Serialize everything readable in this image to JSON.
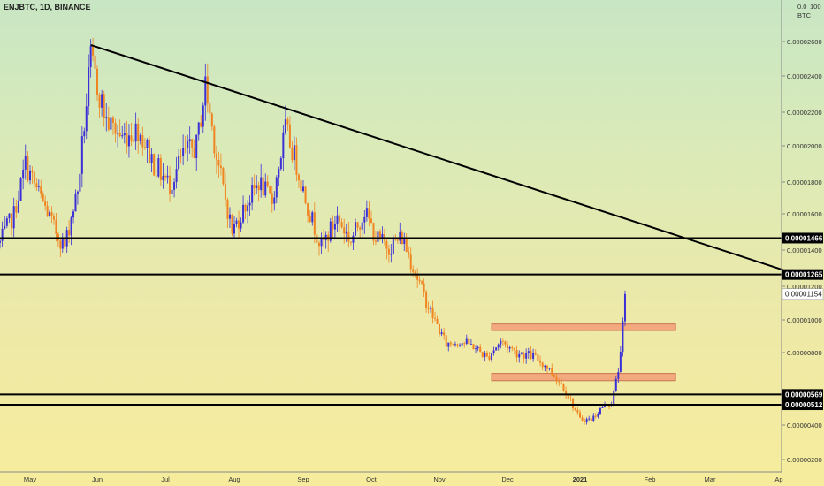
{
  "header": {
    "symbol_title": "ENJBTC, 1D, BINANCE"
  },
  "axis_top": {
    "zero_label": "0.0",
    "unit_label": "BTC",
    "scale_label": "100"
  },
  "colors": {
    "bull": "#3b2fd6",
    "bear": "#f08420",
    "line": "#000000",
    "box_fill": "#f4a27a",
    "box_stroke": "#c86a4a",
    "tag_bg": "#000000",
    "current_tag_bg": "#ffffff"
  },
  "chart_data": {
    "type": "candlestick",
    "title": "ENJBTC, 1D, BINANCE",
    "y_unit": "BTC",
    "ylim": [
      1.4e-06,
      2.78e-06
    ],
    "xlim": [
      "2020-04-18",
      "2021-04-03"
    ],
    "y_ticks": [
      "0.00000200",
      "0.00000400",
      "0.00000800",
      "0.00001000",
      "0.00001200",
      "0.00001400",
      "0.00001600",
      "0.00001800",
      "0.00002000",
      "0.00002200",
      "0.00002400",
      "0.00002600"
    ],
    "x_ticks": [
      {
        "label": "May",
        "date": "2020-05-01"
      },
      {
        "label": "Jun",
        "date": "2020-06-01"
      },
      {
        "label": "Jul",
        "date": "2020-07-01"
      },
      {
        "label": "Aug",
        "date": "2020-08-01"
      },
      {
        "label": "Sep",
        "date": "2020-09-01"
      },
      {
        "label": "Oct",
        "date": "2020-10-01"
      },
      {
        "label": "Nov",
        "date": "2020-11-01"
      },
      {
        "label": "Dec",
        "date": "2020-12-01"
      },
      {
        "label": "2021",
        "date": "2021-01-01"
      },
      {
        "label": "Feb",
        "date": "2021-02-01"
      },
      {
        "label": "Mar",
        "date": "2021-03-01"
      },
      {
        "label": "Ap",
        "date": "2021-04-01"
      }
    ],
    "horizontal_levels": [
      {
        "value": 1.466e-05,
        "label": "0.00001466"
      },
      {
        "value": 1.265e-05,
        "label": "0.00001265"
      },
      {
        "value": 5.69e-06,
        "label": "0.00000569"
      },
      {
        "value": 5.12e-06,
        "label": "0.00000512"
      }
    ],
    "current_price": {
      "value": 1.154e-05,
      "label": "0.00001154"
    },
    "trendline": {
      "start": {
        "date": "2020-05-29",
        "value": 2.58e-05
      },
      "end": {
        "date": "2021-04-03",
        "value": 1.29e-05
      }
    },
    "zones": [
      {
        "start": "2020-11-24",
        "end": "2021-02-13",
        "low": 9.35e-06,
        "high": 9.75e-06
      },
      {
        "start": "2020-11-24",
        "end": "2021-02-13",
        "low": 6.45e-06,
        "high": 6.85e-06
      }
    ],
    "anchors": [
      [
        "2020-04-18",
        1.44e-05
      ],
      [
        "2020-04-24",
        1.6e-05
      ],
      [
        "2020-04-29",
        1.9e-05
      ],
      [
        "2020-05-06",
        1.7e-05
      ],
      [
        "2020-05-12",
        1.52e-05
      ],
      [
        "2020-05-17",
        1.42e-05
      ],
      [
        "2020-05-23",
        1.75e-05
      ],
      [
        "2020-05-29",
        2.5e-05
      ],
      [
        "2020-06-05",
        2.15e-05
      ],
      [
        "2020-06-12",
        2.05e-05
      ],
      [
        "2020-06-19",
        2.1e-05
      ],
      [
        "2020-06-26",
        1.9e-05
      ],
      [
        "2020-07-03",
        1.78e-05
      ],
      [
        "2020-07-09",
        1.95e-05
      ],
      [
        "2020-07-15",
        2e-05
      ],
      [
        "2020-07-19",
        2.35e-05
      ],
      [
        "2020-07-24",
        1.95e-05
      ],
      [
        "2020-07-31",
        1.5e-05
      ],
      [
        "2020-08-06",
        1.65e-05
      ],
      [
        "2020-08-12",
        1.8e-05
      ],
      [
        "2020-08-18",
        1.68e-05
      ],
      [
        "2020-08-24",
        2.1e-05
      ],
      [
        "2020-08-29",
        1.9e-05
      ],
      [
        "2020-09-04",
        1.6e-05
      ],
      [
        "2020-09-09",
        1.42e-05
      ],
      [
        "2020-09-16",
        1.58e-05
      ],
      [
        "2020-09-22",
        1.45e-05
      ],
      [
        "2020-09-28",
        1.62e-05
      ],
      [
        "2020-10-03",
        1.47e-05
      ],
      [
        "2020-10-09",
        1.42e-05
      ],
      [
        "2020-10-15",
        1.47e-05
      ],
      [
        "2020-10-21",
        1.28e-05
      ],
      [
        "2020-10-27",
        1.08e-05
      ],
      [
        "2020-11-04",
        8.5e-06
      ],
      [
        "2020-11-10",
        8.7e-06
      ],
      [
        "2020-11-16",
        8.4e-06
      ],
      [
        "2020-11-22",
        7.7e-06
      ],
      [
        "2020-11-28",
        8.7e-06
      ],
      [
        "2020-12-05",
        8e-06
      ],
      [
        "2020-12-12",
        7.8e-06
      ],
      [
        "2020-12-18",
        7.2e-06
      ],
      [
        "2020-12-25",
        6.1e-06
      ],
      [
        "2021-01-01",
        4.3e-06
      ],
      [
        "2021-01-06",
        4.3e-06
      ],
      [
        "2021-01-11",
        5e-06
      ],
      [
        "2021-01-15",
        5.2e-06
      ],
      [
        "2021-01-18",
        7e-06
      ],
      [
        "2021-01-20",
        9.6e-06
      ],
      [
        "2021-01-21",
        1.15e-05
      ]
    ]
  }
}
